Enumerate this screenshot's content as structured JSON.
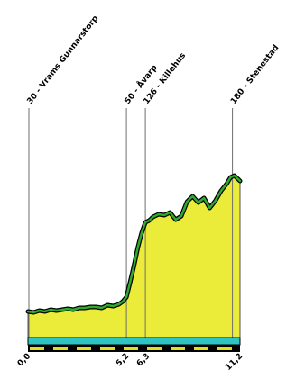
{
  "chart_data": {
    "type": "area",
    "title": "",
    "xlabel": "",
    "ylabel": "",
    "xlim": [
      0,
      11.2
    ],
    "x_ticks": [
      {
        "x": 0.0,
        "label": "0,0"
      },
      {
        "x": 5.2,
        "label": "5,2"
      },
      {
        "x": 6.3,
        "label": "6,3"
      },
      {
        "x": 11.2,
        "label": "11,2"
      }
    ],
    "waypoints": [
      {
        "x": 0.05,
        "label": "30 - Vrams Gunnarstorp"
      },
      {
        "x": 5.2,
        "label": "50 - Åvarp"
      },
      {
        "x": 6.2,
        "label": "126 - Killehus"
      },
      {
        "x": 10.8,
        "label": "180 - Stenestad"
      }
    ],
    "profile": {
      "x": [
        0.0,
        0.3,
        0.6,
        0.9,
        1.2,
        1.5,
        1.8,
        2.1,
        2.4,
        2.7,
        3.0,
        3.3,
        3.6,
        3.9,
        4.2,
        4.5,
        4.8,
        5.0,
        5.2,
        5.4,
        5.6,
        5.8,
        6.0,
        6.2,
        6.4,
        6.6,
        6.9,
        7.2,
        7.5,
        7.8,
        8.1,
        8.4,
        8.7,
        9.0,
        9.3,
        9.6,
        9.9,
        10.2,
        10.5,
        10.7,
        10.9,
        11.2
      ],
      "y": [
        29,
        28,
        30,
        29,
        31,
        30,
        31,
        32,
        31,
        33,
        33,
        34,
        34,
        33,
        36,
        35,
        37,
        40,
        45,
        62,
        80,
        100,
        116,
        128,
        130,
        134,
        137,
        136,
        139,
        131,
        135,
        151,
        157,
        150,
        155,
        144,
        152,
        163,
        171,
        178,
        180,
        174
      ]
    },
    "fill_color": "#ebeb3a",
    "line_color": "#0e6b0e",
    "road_band_colors": [
      "#2ec4c4",
      "#000000",
      "#e0e020"
    ]
  }
}
